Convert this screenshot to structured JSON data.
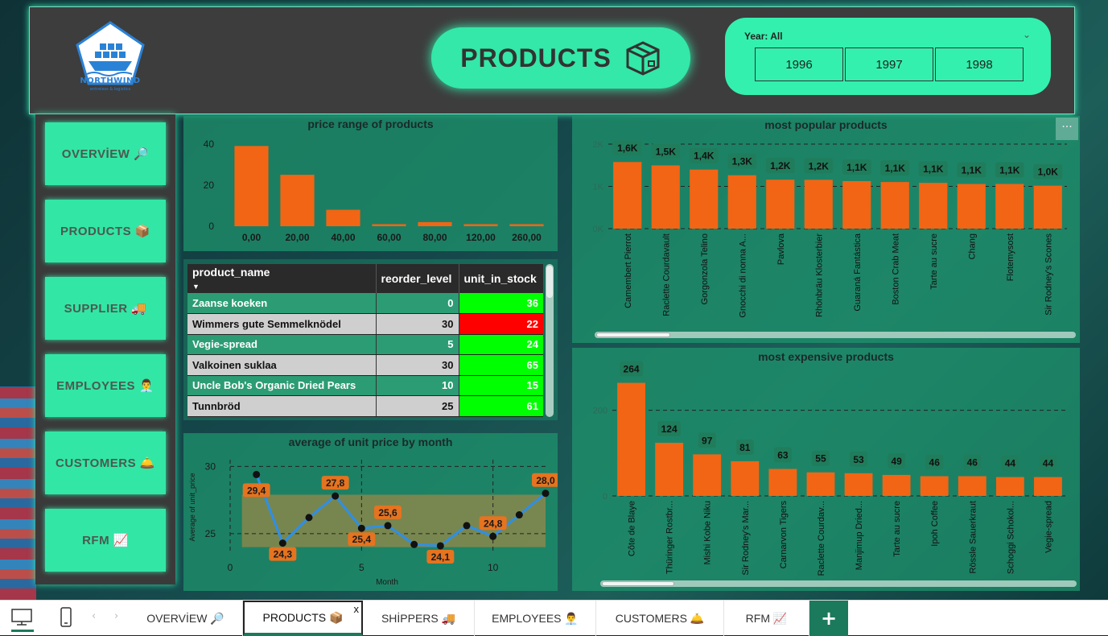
{
  "header": {
    "logo_text": "NORTHWIND",
    "logo_sub": "entreless & logistics",
    "title": "PRODUCTS",
    "year_filter": {
      "label": "Year: All",
      "options": [
        "1996",
        "1997",
        "1998"
      ]
    }
  },
  "sidebar": {
    "items": [
      {
        "label": "OVERVİEW 🔎"
      },
      {
        "label": "PRODUCTS 📦"
      },
      {
        "label": "SUPPLIER 🚚"
      },
      {
        "label": "EMPLOYEES 👨‍💼"
      },
      {
        "label": "CUSTOMERS 🛎️"
      },
      {
        "label": "RFM 📈"
      }
    ]
  },
  "price_range": {
    "title": "price range of products",
    "chart_data": {
      "type": "bar",
      "categories": [
        "0,00",
        "20,00",
        "40,00",
        "60,00",
        "80,00",
        "120,00",
        "260,00"
      ],
      "values": [
        39,
        25,
        8,
        1,
        2,
        1,
        1
      ],
      "ylim": [
        0,
        45
      ],
      "yticks": [
        "0",
        "20",
        "40"
      ]
    }
  },
  "stock_table": {
    "columns": [
      "product_name",
      "reorder_level",
      "unit_in_stock"
    ],
    "rows": [
      {
        "name": "Zaanse koeken",
        "reorder": "0",
        "stock": "36",
        "stock_color": "#00ff00",
        "row_bg": "#2c9c74",
        "text_color": "#ffffff"
      },
      {
        "name": "Wimmers gute Semmelknödel",
        "reorder": "30",
        "stock": "22",
        "stock_color": "#ff0000",
        "row_bg": "#cfcfcf",
        "text_color": "#111111"
      },
      {
        "name": "Vegie-spread",
        "reorder": "5",
        "stock": "24",
        "stock_color": "#00ff00",
        "row_bg": "#2c9c74",
        "text_color": "#ffffff"
      },
      {
        "name": "Valkoinen suklaa",
        "reorder": "30",
        "stock": "65",
        "stock_color": "#00ff00",
        "row_bg": "#cfcfcf",
        "text_color": "#111111"
      },
      {
        "name": "Uncle Bob's Organic Dried Pears",
        "reorder": "10",
        "stock": "15",
        "stock_color": "#00ff00",
        "row_bg": "#2c9c74",
        "text_color": "#ffffff"
      },
      {
        "name": "Tunnbröd",
        "reorder": "25",
        "stock": "61",
        "stock_color": "#00ff00",
        "row_bg": "#cfcfcf",
        "text_color": "#111111"
      }
    ]
  },
  "avg_price": {
    "title": "average of unit price by month",
    "chart_data": {
      "type": "line",
      "x": [
        1,
        2,
        3,
        4,
        5,
        6,
        7,
        8,
        9,
        10,
        11,
        12
      ],
      "y": [
        29.4,
        24.3,
        26.2,
        27.8,
        25.4,
        25.6,
        24.2,
        24.1,
        25.6,
        24.8,
        26.4,
        28.0
      ],
      "labels": [
        "29,4",
        "24,3",
        "",
        "27,8",
        "25,4",
        "25,6",
        "",
        "24,1",
        "",
        "24,8",
        "",
        "28,0"
      ],
      "xlabel": "Month",
      "ylabel": "Average of unit_price",
      "xticks": [
        "0",
        "5",
        "10"
      ],
      "yticks": [
        "25",
        "30"
      ],
      "xlim": [
        0,
        12
      ],
      "ylim": [
        23.5,
        30.5
      ]
    }
  },
  "popular": {
    "title": "most popular products",
    "chart_data": {
      "type": "bar",
      "categories": [
        "Camembert Pierrot",
        "Raclette Courdavault",
        "Gorgonzola Telino",
        "Gnocchi di nonna A...",
        "Pavlova",
        "Rhönbräu Klosterbier",
        "Guaraná Fantástica",
        "Boston Crab Meat",
        "Tarte au sucre",
        "Chang",
        "Flotemysost",
        "Sir Rodney's Scones"
      ],
      "values": [
        1577,
        1496,
        1397,
        1263,
        1158,
        1155,
        1125,
        1103,
        1083,
        1057,
        1057,
        1016
      ],
      "labels": [
        "1,6K",
        "1,5K",
        "1,4K",
        "1,3K",
        "1,2K",
        "1,2K",
        "1,1K",
        "1,1K",
        "1,1K",
        "1,1K",
        "1,1K",
        "1,0K"
      ],
      "yticks": [
        "0K",
        "1K",
        "2K"
      ],
      "ylim": [
        0,
        2000
      ]
    }
  },
  "expensive": {
    "title": "most expensive products",
    "chart_data": {
      "type": "bar",
      "categories": [
        "Côte de Blaye",
        "Thüringer Rostbr...",
        "Mishi Kobe Niku",
        "Sir Rodney's Mar...",
        "Carnarvon Tigers",
        "Raclette Courdav...",
        "Manjimup Dried...",
        "Tarte au sucre",
        "Ipoh Coffee",
        "Rössle Sauerkraut",
        "Schoggi Schokol...",
        "Vegie-spread"
      ],
      "values": [
        264,
        124,
        97,
        81,
        63,
        55,
        53,
        49,
        46,
        46,
        44,
        44
      ],
      "labels": [
        "264",
        "124",
        "97",
        "81",
        "63",
        "55",
        "53",
        "49",
        "46",
        "46",
        "44",
        "44"
      ],
      "yticks": [
        "0",
        "200"
      ],
      "ylim": [
        0,
        280
      ]
    }
  },
  "tabs": [
    {
      "label": "OVERVİEW 🔎"
    },
    {
      "label": "PRODUCTS 📦"
    },
    {
      "label": "SHİPPERS 🚚"
    },
    {
      "label": "EMPLOYEES 👨‍💼"
    },
    {
      "label": "CUSTOMERS 🛎️"
    },
    {
      "label": "RFM 📈"
    }
  ],
  "tab_close": "x",
  "tab_add": "+",
  "more_options": "···",
  "colors": {
    "bar": "#f26514",
    "accent": "#33e8a8",
    "line": "#2f8fe6"
  }
}
